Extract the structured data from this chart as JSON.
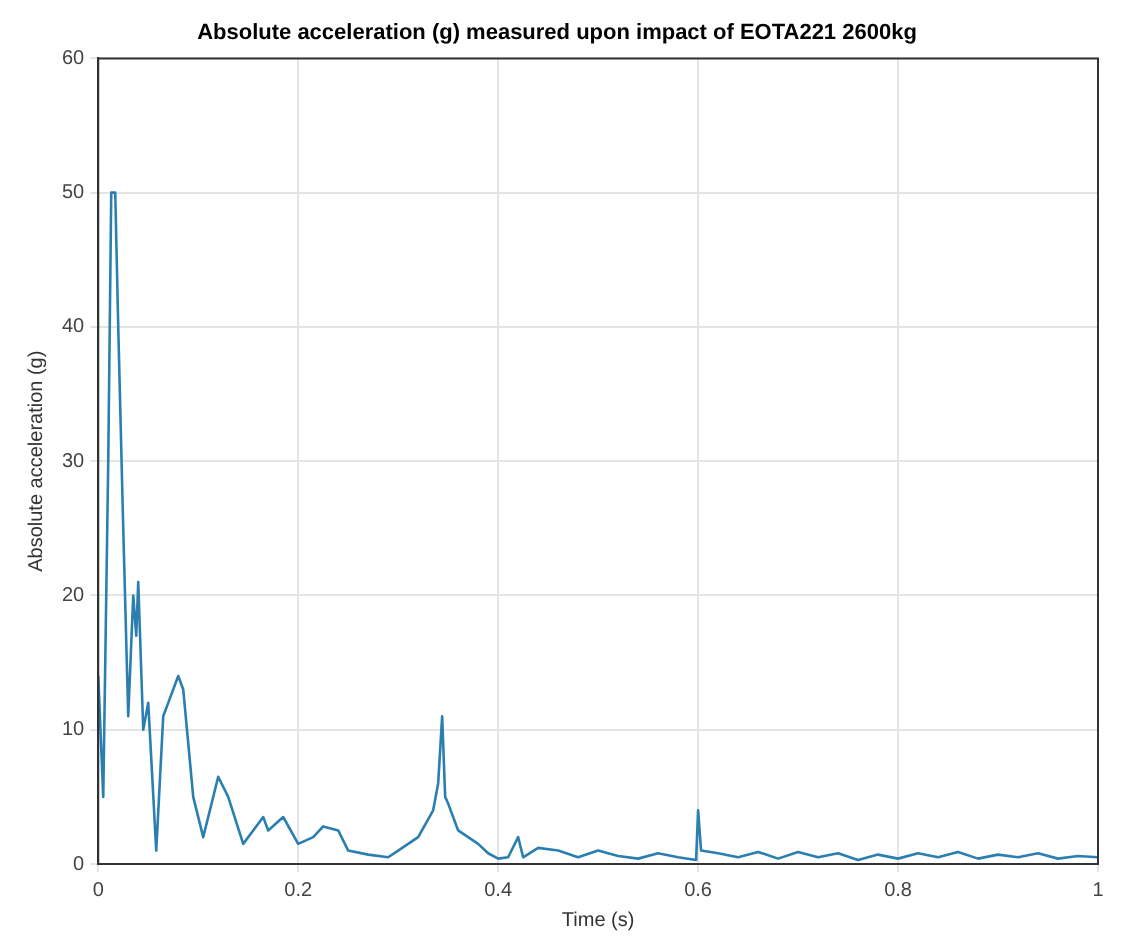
{
  "chart_data": {
    "type": "line",
    "title": "Absolute acceleration (g) measured upon impact of EOTA221 2600kg",
    "xlabel": "Time (s)",
    "ylabel": "Absolute acceleration (g)",
    "x": [
      0,
      0.005,
      0.01,
      0.013,
      0.017,
      0.02,
      0.025,
      0.03,
      0.035,
      0.038,
      0.04,
      0.045,
      0.05,
      0.058,
      0.065,
      0.07,
      0.08,
      0.085,
      0.095,
      0.105,
      0.12,
      0.13,
      0.145,
      0.155,
      0.165,
      0.17,
      0.185,
      0.2,
      0.215,
      0.225,
      0.24,
      0.25,
      0.27,
      0.29,
      0.3,
      0.32,
      0.335,
      0.34,
      0.344,
      0.347,
      0.35,
      0.36,
      0.37,
      0.38,
      0.39,
      0.4,
      0.41,
      0.42,
      0.425,
      0.44,
      0.46,
      0.48,
      0.5,
      0.52,
      0.54,
      0.56,
      0.58,
      0.598,
      0.6,
      0.603,
      0.62,
      0.64,
      0.66,
      0.68,
      0.7,
      0.72,
      0.74,
      0.76,
      0.78,
      0.8,
      0.82,
      0.84,
      0.86,
      0.88,
      0.9,
      0.92,
      0.94,
      0.96,
      0.98,
      1
    ],
    "series": [
      {
        "color": "#2a7fb0",
        "values": [
          14,
          5,
          30,
          50,
          50,
          40,
          25,
          11,
          20,
          17,
          21,
          10,
          12,
          1,
          11,
          12,
          14,
          13,
          5,
          2,
          6.5,
          5,
          1.5,
          2.5,
          3.5,
          2.5,
          3.5,
          1.5,
          2,
          2.8,
          2.5,
          1,
          0.7,
          0.5,
          1,
          2,
          4,
          6,
          11,
          5,
          4.5,
          2.5,
          2,
          1.5,
          0.8,
          0.4,
          0.5,
          2,
          0.5,
          1.2,
          1,
          0.5,
          1,
          0.6,
          0.4,
          0.8,
          0.5,
          0.3,
          4,
          1,
          0.8,
          0.5,
          0.9,
          0.4,
          0.9,
          0.5,
          0.8,
          0.3,
          0.7,
          0.4,
          0.8,
          0.5,
          0.9,
          0.4,
          0.7,
          0.5,
          0.8,
          0.4,
          0.6,
          0.5
        ]
      }
    ],
    "xlim": [
      0,
      1
    ],
    "xticks": [
      0,
      0.2,
      0.4,
      0.6,
      0.8,
      1
    ],
    "ylim": [
      0,
      60
    ],
    "yticks": [
      0,
      10,
      20,
      30,
      40,
      50,
      60
    ],
    "grid": true,
    "legend": false,
    "marker": "none",
    "line_style": "solid"
  }
}
